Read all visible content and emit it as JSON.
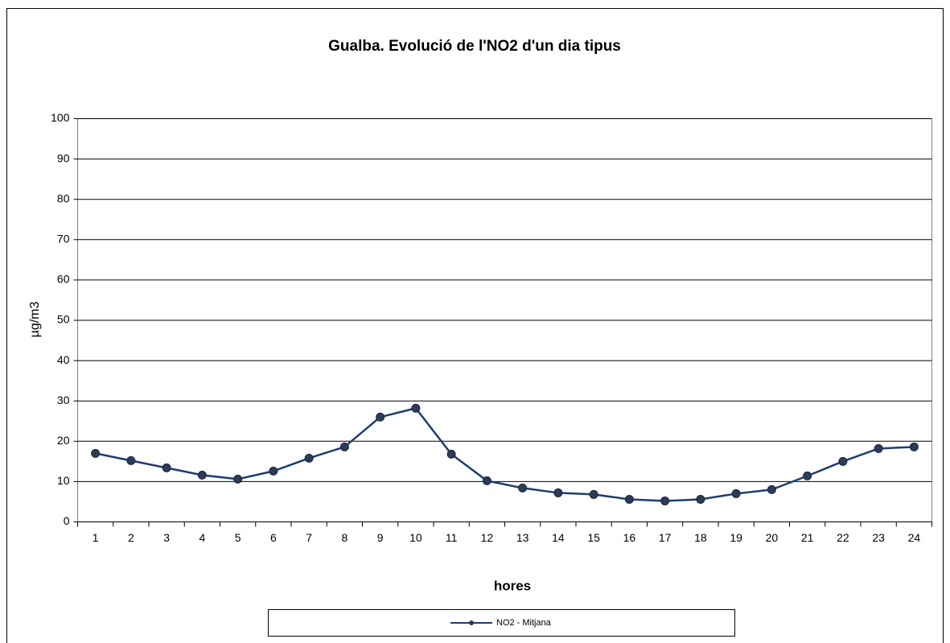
{
  "chart_data": {
    "type": "line",
    "title": "Gualba. Evolució de l'NO2 d'un dia tipus",
    "x_label": "hores",
    "y_label": "µg/m3",
    "categories": [
      "1",
      "2",
      "3",
      "4",
      "5",
      "6",
      "7",
      "8",
      "9",
      "10",
      "11",
      "12",
      "13",
      "14",
      "15",
      "16",
      "17",
      "18",
      "19",
      "20",
      "21",
      "22",
      "23",
      "24"
    ],
    "series": [
      {
        "name": "NO2 - Mitjana",
        "color": "#1f3d6e",
        "values": [
          17.0,
          15.2,
          13.4,
          11.6,
          10.6,
          12.6,
          15.8,
          18.6,
          26.0,
          28.2,
          16.8,
          10.2,
          8.4,
          7.2,
          6.8,
          5.6,
          5.2,
          5.6,
          7.0,
          8.0,
          11.4,
          15.0,
          18.2,
          18.6
        ]
      }
    ],
    "ylim": [
      0,
      100
    ],
    "yticks": [
      0,
      10,
      20,
      30,
      40,
      50,
      60,
      70,
      80,
      90,
      100
    ],
    "grid": true,
    "legend": "bottom"
  }
}
